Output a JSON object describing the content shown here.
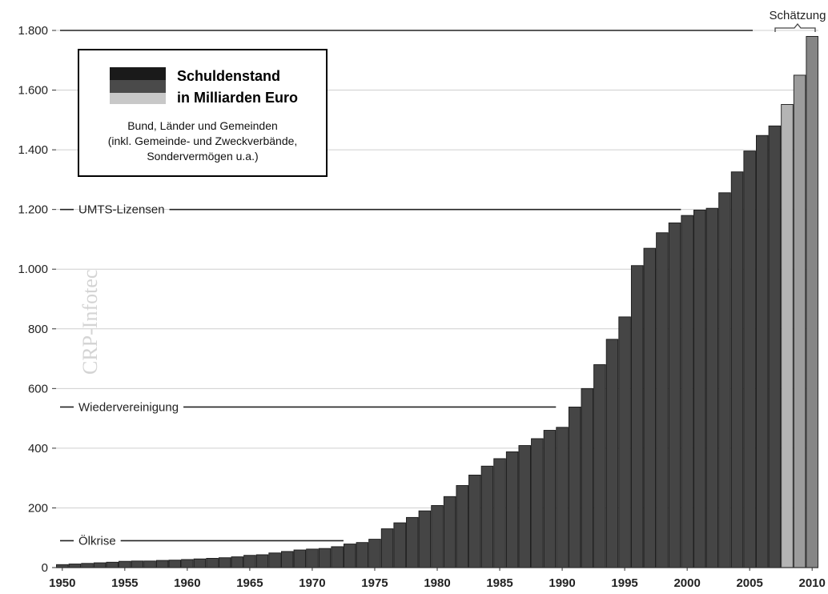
{
  "chart_data": {
    "type": "bar",
    "years": [
      1950,
      1951,
      1952,
      1953,
      1954,
      1955,
      1956,
      1957,
      1958,
      1959,
      1960,
      1961,
      1962,
      1963,
      1964,
      1965,
      1966,
      1967,
      1968,
      1969,
      1970,
      1971,
      1972,
      1973,
      1974,
      1975,
      1976,
      1977,
      1978,
      1979,
      1980,
      1981,
      1982,
      1983,
      1984,
      1985,
      1986,
      1987,
      1988,
      1989,
      1990,
      1991,
      1992,
      1993,
      1994,
      1995,
      1996,
      1997,
      1998,
      1999,
      2000,
      2001,
      2002,
      2003,
      2004,
      2005,
      2006,
      2007,
      2008,
      2009,
      2010
    ],
    "values": [
      10,
      12,
      14,
      16,
      18,
      21,
      22,
      22,
      24,
      25,
      27,
      29,
      31,
      33,
      36,
      41,
      43,
      49,
      54,
      59,
      62,
      64,
      70,
      79,
      84,
      95,
      130,
      150,
      168,
      190,
      208,
      238,
      275,
      310,
      340,
      365,
      388,
      409,
      432,
      460,
      470,
      538,
      600,
      680,
      765,
      840,
      1012,
      1070,
      1122,
      1155,
      1180,
      1198,
      1204,
      1256,
      1326,
      1396,
      1448,
      1480,
      1552,
      1650,
      1780
    ],
    "estimate_years": [
      2008,
      2009,
      2010
    ],
    "ylim": [
      0,
      1800
    ],
    "yticks": [
      0,
      200,
      400,
      600,
      800,
      1000,
      1200,
      1400,
      1600,
      1800
    ],
    "ytick_labels": [
      "0",
      "200",
      "400",
      "600",
      "800",
      "1.000",
      "1.200",
      "1.400",
      "1.600",
      "1.800"
    ],
    "xticks": [
      1950,
      1955,
      1960,
      1965,
      1970,
      1975,
      1980,
      1985,
      1990,
      1995,
      2000,
      2005,
      2010
    ],
    "xtick_labels": [
      "1950",
      "1955",
      "1960",
      "1965",
      "1970",
      "1975",
      "1980",
      "1985",
      "1990",
      "1995",
      "2000",
      "2005",
      "2010"
    ],
    "grid": true,
    "legend": {
      "placement": "top-left",
      "title_line1": "Schuldenstand",
      "title_line2": "in Milliarden Euro",
      "desc_line1": "Bund, Länder und Gemeinden",
      "desc_line2": "(inkl. Gemeinde- und Zweckverbände,",
      "desc_line3": "Sondervermögen u.a.)"
    },
    "annotations": [
      {
        "label": "Ölkrise",
        "value": 90,
        "until_year": 1973
      },
      {
        "label": "Wiedervereinigung",
        "value": 538,
        "until_year": 1990
      },
      {
        "label": "UMTS-Lizensen",
        "value": 1200,
        "until_year": 2000
      }
    ],
    "estimate_label": "Schätzung",
    "colors": {
      "bar_actual": "#454545",
      "bar_estimate_light": "#b4b4b4",
      "bar_estimate_mid": "#868686",
      "legend_swatch_top": "#1a1a1a",
      "legend_swatch_mid": "#4a4a4a",
      "legend_swatch_bottom": "#c8c8c8"
    },
    "watermark": "CRP-Infotec"
  }
}
